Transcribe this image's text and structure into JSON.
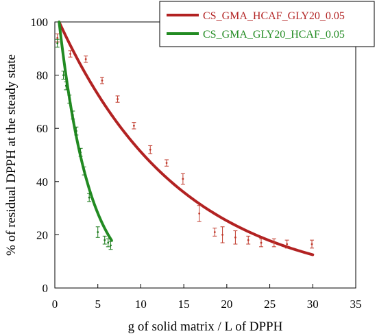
{
  "chart_data": {
    "type": "scatter",
    "title": "",
    "xlabel": "g of solid matrix / L of DPPH",
    "ylabel": "% of residual DPPH at the steady state",
    "xlim": [
      0,
      35
    ],
    "ylim": [
      0,
      100
    ],
    "x_ticks": [
      "0",
      "5",
      "10",
      "15",
      "20",
      "25",
      "30",
      "35"
    ],
    "y_ticks": [
      "0",
      "20",
      "40",
      "60",
      "80",
      "100"
    ],
    "grid": false,
    "legend_position": "top-right",
    "series": [
      {
        "name": "CS_GMA_HCAF_GLY20_0.05",
        "color": "#c0392b",
        "line_color": "#b22222",
        "points": [
          {
            "x": 0.3,
            "y": 94,
            "err": 1.5
          },
          {
            "x": 1.8,
            "y": 88,
            "err": 1.2
          },
          {
            "x": 3.6,
            "y": 86,
            "err": 1.2
          },
          {
            "x": 5.5,
            "y": 78,
            "err": 1.2
          },
          {
            "x": 7.3,
            "y": 71,
            "err": 1.2
          },
          {
            "x": 9.2,
            "y": 61,
            "err": 1.2
          },
          {
            "x": 11.1,
            "y": 52,
            "err": 1.5
          },
          {
            "x": 13.0,
            "y": 47,
            "err": 1.2
          },
          {
            "x": 14.9,
            "y": 41,
            "err": 2.0
          },
          {
            "x": 16.8,
            "y": 28,
            "err": 3.0
          },
          {
            "x": 18.6,
            "y": 21,
            "err": 1.5
          },
          {
            "x": 19.5,
            "y": 20,
            "err": 3.0
          },
          {
            "x": 21.0,
            "y": 19,
            "err": 2.5
          },
          {
            "x": 22.5,
            "y": 18,
            "err": 1.5
          },
          {
            "x": 24.0,
            "y": 17,
            "err": 1.5
          },
          {
            "x": 25.5,
            "y": 17,
            "err": 1.5
          },
          {
            "x": 27.0,
            "y": 16.5,
            "err": 1.5
          },
          {
            "x": 29.9,
            "y": 16.5,
            "err": 1.5
          }
        ],
        "fit": {
          "y0": 100,
          "k": 0.0705,
          "x_start": 0.5,
          "x_end": 30
        }
      },
      {
        "name": "CS_GMA_GLY20_HCAF_0.05",
        "color": "#1a7a1a",
        "line_color": "#228b22",
        "points": [
          {
            "x": 0.3,
            "y": 92,
            "err": 1.5
          },
          {
            "x": 1.0,
            "y": 80,
            "err": 1.5
          },
          {
            "x": 1.3,
            "y": 76,
            "err": 1.5
          },
          {
            "x": 1.7,
            "y": 71,
            "err": 1.5
          },
          {
            "x": 2.1,
            "y": 65,
            "err": 1.5
          },
          {
            "x": 2.5,
            "y": 59,
            "err": 1.5
          },
          {
            "x": 3.0,
            "y": 51,
            "err": 1.5
          },
          {
            "x": 3.4,
            "y": 44,
            "err": 1.5
          },
          {
            "x": 4.0,
            "y": 34,
            "err": 1.5
          },
          {
            "x": 5.0,
            "y": 21,
            "err": 2.0
          },
          {
            "x": 5.8,
            "y": 18,
            "err": 1.5
          },
          {
            "x": 6.2,
            "y": 17,
            "err": 1.5
          },
          {
            "x": 6.5,
            "y": 16,
            "err": 1.5
          }
        ],
        "fit": {
          "y0": 100,
          "k": 0.282,
          "x_start": 0.5,
          "x_end": 6.6
        }
      }
    ]
  }
}
